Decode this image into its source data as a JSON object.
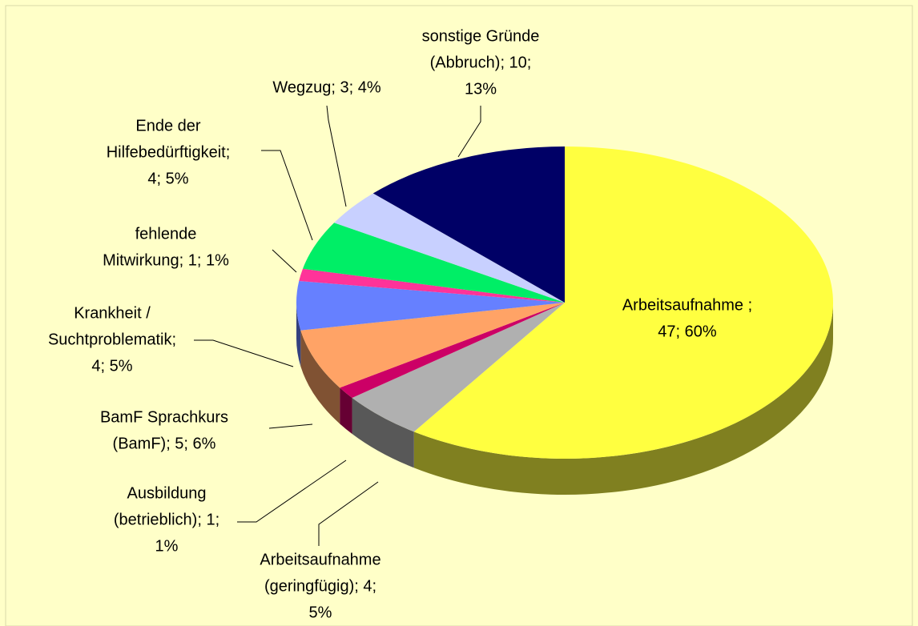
{
  "chart_data": {
    "type": "pie3d",
    "values": [
      47,
      4,
      1,
      5,
      4,
      1,
      4,
      3,
      10
    ],
    "value_labels": [
      [
        "Arbeitsaufnahme ;",
        "47; 60%"
      ],
      [
        "Arbeitsaufnahme",
        "(geringfügig); 4;",
        "5%"
      ],
      [
        "Ausbildung",
        "(betrieblich); 1;",
        "1%"
      ],
      [
        "BamF Sprachkurs",
        "(BamF); 5; 6%"
      ],
      [
        "Krankheit /",
        "Suchtproblematik;",
        "4; 5%"
      ],
      [
        "fehlende",
        "Mitwirkung; 1; 1%"
      ],
      [
        "Ende der",
        "Hilfebedürftigkeit;",
        "4; 5%"
      ],
      [
        "Wegzug; 3; 4%"
      ],
      [
        "sonstige Gründe",
        "(Abbruch); 10;",
        "13%"
      ]
    ],
    "colors": [
      "#ffff40",
      "#b0b0b0",
      "#cc0066",
      "#ffa366",
      "#6680ff",
      "#ff3399",
      "#00ee66",
      "#c8d0ff",
      "#000066"
    ]
  }
}
